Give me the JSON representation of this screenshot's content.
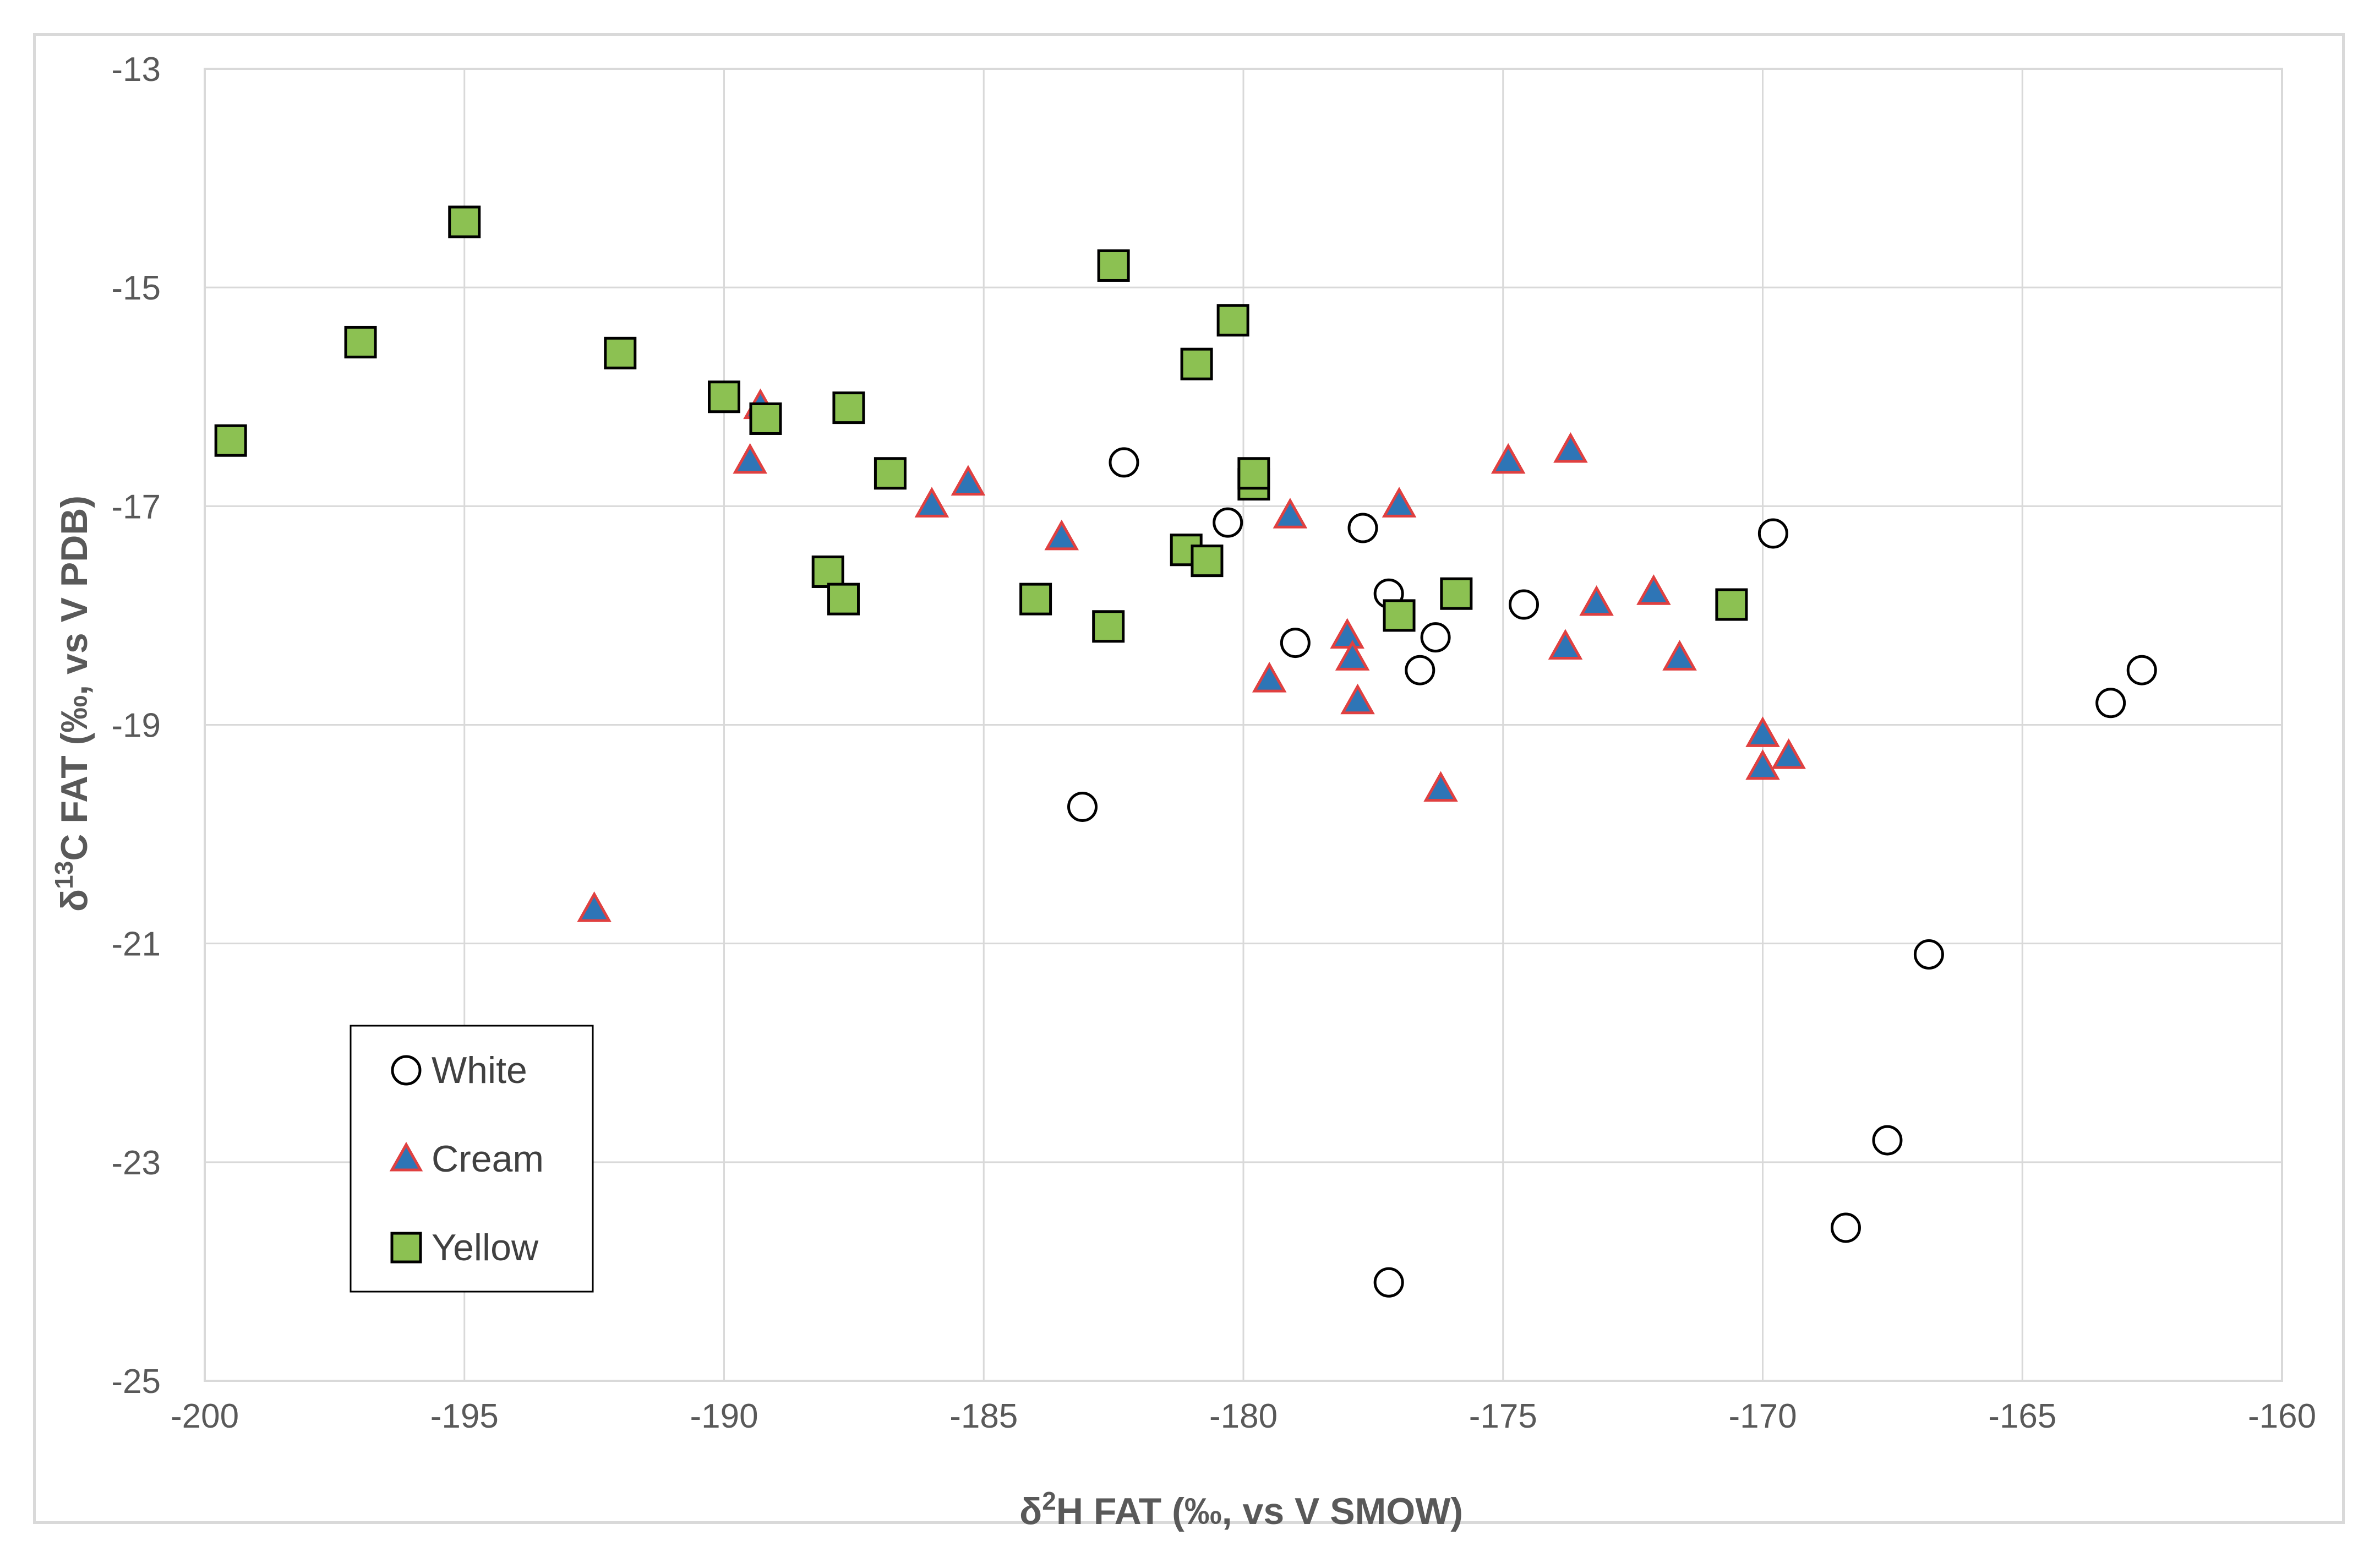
{
  "chart_data": {
    "type": "scatter",
    "title": "",
    "xlabel_prefix": "δ",
    "xlabel_sup": "2",
    "xlabel_rest": "H FAT (‰, vs V SMOW)",
    "ylabel_prefix": "δ",
    "ylabel_sup": "13",
    "ylabel_rest": "C FAT (‰, vs V PDB)",
    "xlim": [
      -200,
      -160
    ],
    "ylim": [
      -25,
      -13
    ],
    "xticks": [
      -200,
      -195,
      -190,
      -185,
      -180,
      -175,
      -170,
      -165,
      -160
    ],
    "yticks": [
      -13,
      -15,
      -17,
      -19,
      -21,
      -23,
      -25
    ],
    "grid": true,
    "legend_position": "bottom-left",
    "series": [
      {
        "name": "White",
        "marker": "circle",
        "fill": "#ffffff",
        "stroke": "#000000",
        "points": [
          [
            -182.3,
            -16.6
          ],
          [
            -180.3,
            -17.15
          ],
          [
            -177.7,
            -17.2
          ],
          [
            -169.8,
            -17.25
          ],
          [
            -177.2,
            -17.8
          ],
          [
            -174.6,
            -17.9
          ],
          [
            -179.0,
            -18.25
          ],
          [
            -176.3,
            -18.2
          ],
          [
            -176.6,
            -18.5
          ],
          [
            -162.7,
            -18.5
          ],
          [
            -163.3,
            -18.8
          ],
          [
            -183.1,
            -19.75
          ],
          [
            -166.8,
            -21.1
          ],
          [
            -167.6,
            -22.8
          ],
          [
            -168.4,
            -23.6
          ],
          [
            -177.2,
            -24.1
          ]
        ]
      },
      {
        "name": "Cream",
        "marker": "triangle",
        "fill": "#2e75b6",
        "stroke": "#e04040",
        "points": [
          [
            -189.3,
            -16.1
          ],
          [
            -189.5,
            -16.6
          ],
          [
            -186.0,
            -17.0
          ],
          [
            -185.3,
            -16.8
          ],
          [
            -183.5,
            -17.3
          ],
          [
            -179.1,
            -17.1
          ],
          [
            -177.0,
            -17.0
          ],
          [
            -174.9,
            -16.6
          ],
          [
            -173.7,
            -16.5
          ],
          [
            -178.0,
            -18.2
          ],
          [
            -177.9,
            -18.4
          ],
          [
            -179.5,
            -18.6
          ],
          [
            -177.8,
            -18.8
          ],
          [
            -173.8,
            -18.3
          ],
          [
            -173.2,
            -17.9
          ],
          [
            -172.1,
            -17.8
          ],
          [
            -171.6,
            -18.4
          ],
          [
            -176.2,
            -19.6
          ],
          [
            -170.0,
            -19.1
          ],
          [
            -170.0,
            -19.4
          ],
          [
            -169.5,
            -19.3
          ],
          [
            -192.5,
            -20.7
          ]
        ]
      },
      {
        "name": "Yellow",
        "marker": "square",
        "fill": "#8cc152",
        "stroke": "#000000",
        "points": [
          [
            -195.0,
            -14.4
          ],
          [
            -197.0,
            -15.5
          ],
          [
            -192.0,
            -15.6
          ],
          [
            -199.5,
            -16.4
          ],
          [
            -190.0,
            -16.0
          ],
          [
            -189.2,
            -16.2
          ],
          [
            -187.6,
            -16.1
          ],
          [
            -186.8,
            -16.7
          ],
          [
            -188.0,
            -17.6
          ],
          [
            -187.7,
            -17.85
          ],
          [
            -184.0,
            -17.85
          ],
          [
            -182.6,
            -18.1
          ],
          [
            -182.5,
            -14.8
          ],
          [
            -180.2,
            -15.3
          ],
          [
            -180.9,
            -15.7
          ],
          [
            -179.8,
            -16.8
          ],
          [
            -179.8,
            -16.7
          ],
          [
            -181.1,
            -17.4
          ],
          [
            -180.7,
            -17.5
          ],
          [
            -177.0,
            -18.0
          ],
          [
            -175.9,
            -17.8
          ],
          [
            -170.6,
            -17.9
          ]
        ]
      }
    ]
  }
}
